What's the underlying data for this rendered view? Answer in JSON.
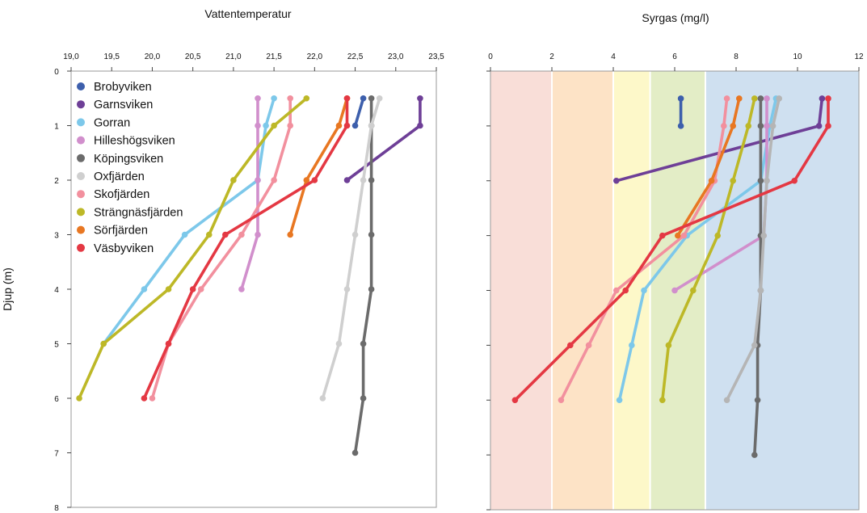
{
  "chart_data": [
    {
      "type": "line",
      "title": "Vattentemperatur",
      "ylabel": "Djup (m)",
      "xlabel": "",
      "x_ticks": [
        "19,0",
        "19,5",
        "20,0",
        "20,5",
        "21,0",
        "21,5",
        "22,0",
        "22,5",
        "23,0",
        "23,5"
      ],
      "y_ticks": [
        "0",
        "1",
        "2",
        "3",
        "4",
        "5",
        "6",
        "7",
        "8"
      ],
      "xlim": [
        19.0,
        23.5
      ],
      "ylim": [
        0,
        8
      ],
      "x_axis_position": "top",
      "y_inverted": true,
      "grid": false,
      "legend_position": "top-left",
      "series": [
        {
          "name": "Brobyviken",
          "color": "#3d5fac",
          "points": [
            [
              22.6,
              0.5
            ],
            [
              22.5,
              1.0
            ]
          ]
        },
        {
          "name": "Garnsviken",
          "color": "#6e3f97",
          "points": [
            [
              23.3,
              0.5
            ],
            [
              23.3,
              1.0
            ],
            [
              22.4,
              2.0
            ]
          ]
        },
        {
          "name": "Gorran",
          "color": "#7dc8ea",
          "points": [
            [
              21.5,
              0.5
            ],
            [
              21.4,
              1.0
            ],
            [
              21.3,
              2.0
            ],
            [
              20.4,
              3.0
            ],
            [
              19.9,
              4.0
            ],
            [
              19.4,
              5.0
            ]
          ]
        },
        {
          "name": "Hilleshögsviken",
          "color": "#d18fcc",
          "points": [
            [
              21.3,
              0.5
            ],
            [
              21.3,
              1.0
            ],
            [
              21.3,
              2.0
            ],
            [
              21.3,
              3.0
            ],
            [
              21.1,
              4.0
            ]
          ]
        },
        {
          "name": "Köpingsviken",
          "color": "#6b6b6b",
          "points": [
            [
              22.7,
              0.5
            ],
            [
              22.7,
              1.0
            ],
            [
              22.7,
              2.0
            ],
            [
              22.7,
              3.0
            ],
            [
              22.7,
              4.0
            ],
            [
              22.6,
              5.0
            ],
            [
              22.6,
              6.0
            ],
            [
              22.5,
              7.0
            ]
          ]
        },
        {
          "name": "Oxfjärden",
          "color": "#cfcfcf",
          "points": [
            [
              22.8,
              0.5
            ],
            [
              22.7,
              1.0
            ],
            [
              22.6,
              2.0
            ],
            [
              22.5,
              3.0
            ],
            [
              22.4,
              4.0
            ],
            [
              22.3,
              5.0
            ],
            [
              22.1,
              6.0
            ]
          ]
        },
        {
          "name": "Skofjärden",
          "color": "#f2909e",
          "points": [
            [
              21.7,
              0.5
            ],
            [
              21.7,
              1.0
            ],
            [
              21.5,
              2.0
            ],
            [
              21.1,
              3.0
            ],
            [
              20.6,
              4.0
            ],
            [
              20.2,
              5.0
            ],
            [
              20.0,
              6.0
            ]
          ]
        },
        {
          "name": "Strängnäsfjärden",
          "color": "#bdb827",
          "points": [
            [
              21.9,
              0.5
            ],
            [
              21.5,
              1.0
            ],
            [
              21.0,
              2.0
            ],
            [
              20.7,
              3.0
            ],
            [
              20.2,
              4.0
            ],
            [
              19.4,
              5.0
            ],
            [
              19.1,
              6.0
            ]
          ]
        },
        {
          "name": "Sörfjärden",
          "color": "#e87722",
          "points": [
            [
              22.4,
              0.5
            ],
            [
              22.3,
              1.0
            ],
            [
              21.9,
              2.0
            ],
            [
              21.7,
              3.0
            ]
          ]
        },
        {
          "name": "Väsbyviken",
          "color": "#e43843",
          "points": [
            [
              22.4,
              0.5
            ],
            [
              22.4,
              1.0
            ],
            [
              22.0,
              2.0
            ],
            [
              20.9,
              3.0
            ],
            [
              20.5,
              4.0
            ],
            [
              20.2,
              5.0
            ],
            [
              19.9,
              6.0
            ]
          ]
        }
      ]
    },
    {
      "type": "line",
      "title": "Syrgas (mg/l)",
      "xlabel": "",
      "ylabel": "",
      "x_ticks": [
        "0",
        "2",
        "4",
        "6",
        "8",
        "10",
        "12"
      ],
      "y_ticks": [],
      "xlim": [
        0,
        12
      ],
      "ylim": [
        0,
        8
      ],
      "x_axis_position": "top",
      "y_inverted": true,
      "grid": false,
      "legend_position": "none",
      "background_bands": [
        {
          "from": 0,
          "to": 2,
          "color": "#f9ded8"
        },
        {
          "from": 2,
          "to": 4,
          "color": "#fde3c6"
        },
        {
          "from": 4,
          "to": 5.2,
          "color": "#fdf8c9"
        },
        {
          "from": 5.2,
          "to": 7,
          "color": "#e3edc6"
        },
        {
          "from": 7,
          "to": 12,
          "color": "#cfe0f0"
        }
      ],
      "series": [
        {
          "name": "Brobyviken",
          "color": "#3d5fac",
          "points": [
            [
              6.2,
              0.5
            ],
            [
              6.2,
              1.0
            ]
          ]
        },
        {
          "name": "Garnsviken",
          "color": "#6e3f97",
          "points": [
            [
              10.8,
              0.5
            ],
            [
              10.7,
              1.0
            ],
            [
              4.1,
              2.0
            ]
          ]
        },
        {
          "name": "Gorran",
          "color": "#7dc8ea",
          "points": [
            [
              9.3,
              0.5
            ],
            [
              9.1,
              1.0
            ],
            [
              8.8,
              2.0
            ],
            [
              6.4,
              3.0
            ],
            [
              5.0,
              4.0
            ],
            [
              4.6,
              5.0
            ],
            [
              4.2,
              6.0
            ]
          ]
        },
        {
          "name": "Hilleshögsviken",
          "color": "#d18fcc",
          "points": [
            [
              9.0,
              0.5
            ],
            [
              9.0,
              1.0
            ],
            [
              9.0,
              2.0
            ],
            [
              8.9,
              3.0
            ],
            [
              6.0,
              4.0
            ]
          ]
        },
        {
          "name": "Köpingsviken",
          "color": "#6b6b6b",
          "points": [
            [
              8.8,
              0.5
            ],
            [
              8.8,
              1.0
            ],
            [
              8.8,
              2.0
            ],
            [
              8.8,
              3.0
            ],
            [
              8.8,
              4.0
            ],
            [
              8.7,
              5.0
            ],
            [
              8.7,
              6.0
            ],
            [
              8.6,
              7.0
            ]
          ]
        },
        {
          "name": "Oxfjärden",
          "color": "#b5b5b5",
          "points": [
            [
              9.4,
              0.5
            ],
            [
              9.2,
              1.0
            ],
            [
              9.0,
              2.0
            ],
            [
              8.9,
              3.0
            ],
            [
              8.8,
              4.0
            ],
            [
              8.6,
              5.0
            ],
            [
              7.7,
              6.0
            ]
          ]
        },
        {
          "name": "Skofjärden",
          "color": "#f2909e",
          "points": [
            [
              7.7,
              0.5
            ],
            [
              7.6,
              1.0
            ],
            [
              7.3,
              2.0
            ],
            [
              6.3,
              3.0
            ],
            [
              4.1,
              4.0
            ],
            [
              3.2,
              5.0
            ],
            [
              2.3,
              6.0
            ]
          ]
        },
        {
          "name": "Strängnäsfjärden",
          "color": "#bdb827",
          "points": [
            [
              8.6,
              0.5
            ],
            [
              8.4,
              1.0
            ],
            [
              7.9,
              2.0
            ],
            [
              7.4,
              3.0
            ],
            [
              6.6,
              4.0
            ],
            [
              5.8,
              5.0
            ],
            [
              5.6,
              6.0
            ]
          ]
        },
        {
          "name": "Sörfjärden",
          "color": "#e87722",
          "points": [
            [
              8.1,
              0.5
            ],
            [
              7.9,
              1.0
            ],
            [
              7.2,
              2.0
            ],
            [
              6.1,
              3.0
            ]
          ]
        },
        {
          "name": "Väsbyviken",
          "color": "#e43843",
          "points": [
            [
              11.0,
              0.5
            ],
            [
              11.0,
              1.0
            ],
            [
              9.9,
              2.0
            ],
            [
              5.6,
              3.0
            ],
            [
              4.4,
              4.0
            ],
            [
              2.6,
              5.0
            ],
            [
              0.8,
              6.0
            ]
          ]
        }
      ]
    }
  ]
}
